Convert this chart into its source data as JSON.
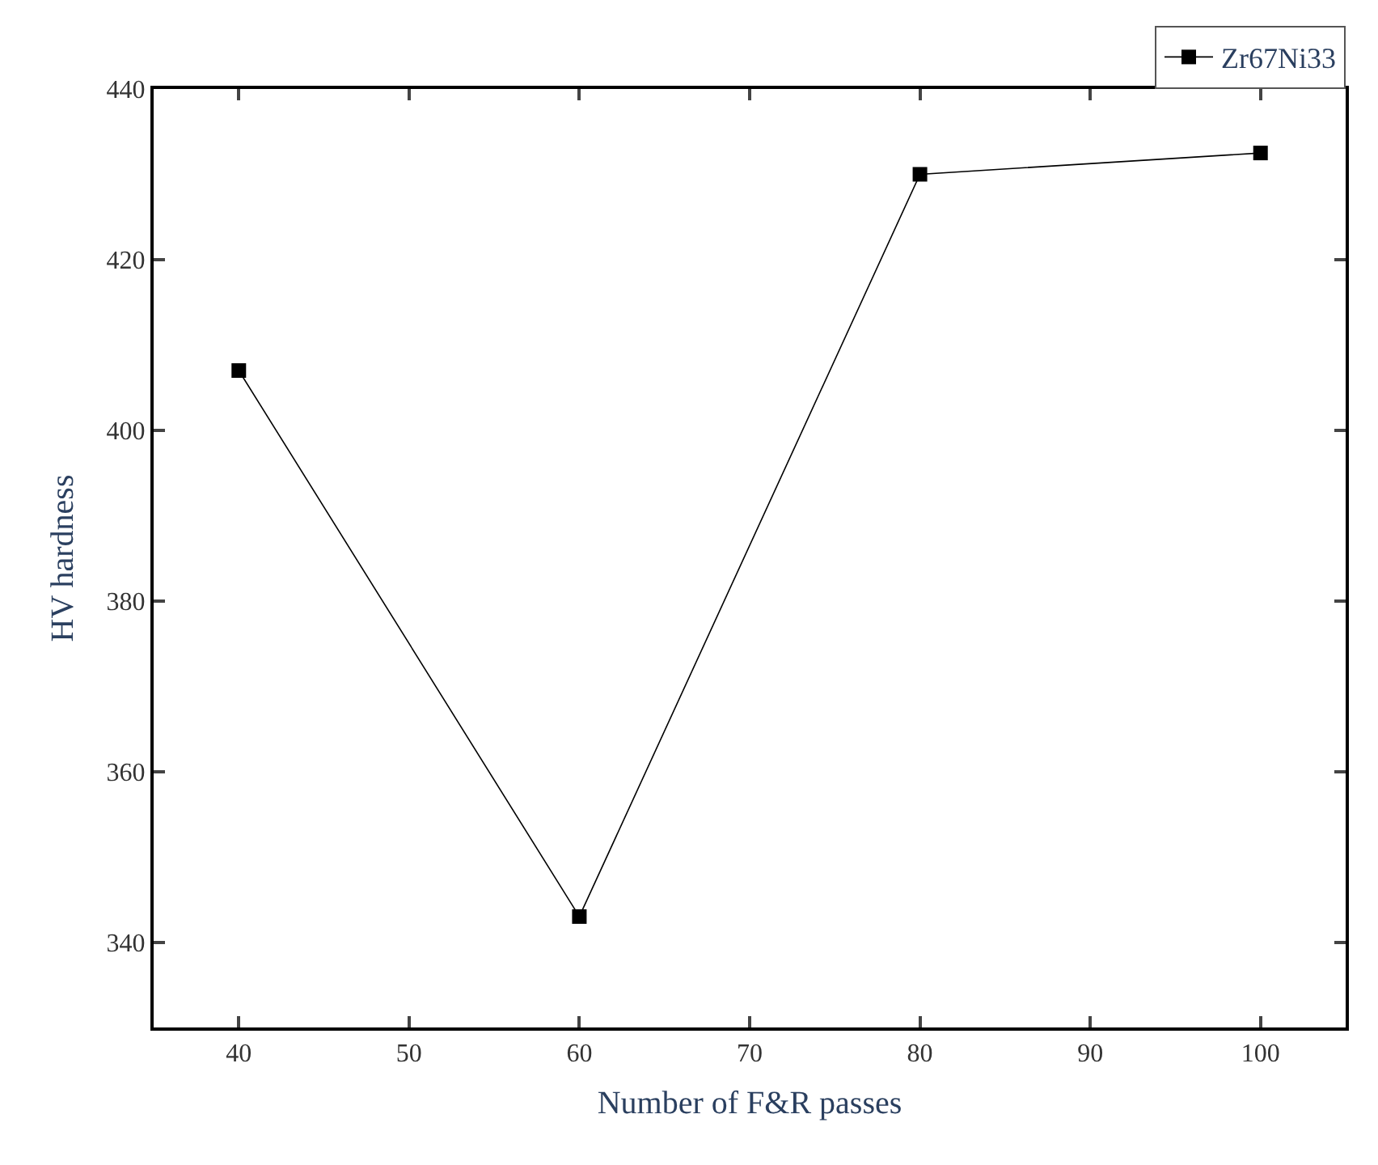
{
  "chart_data": {
    "type": "line",
    "xlabel": "Number of F&R passes",
    "ylabel": "HV hardness",
    "x": [
      40,
      60,
      80,
      100
    ],
    "series": [
      {
        "name": "Zr67Ni33",
        "color": "#000000",
        "values": [
          407,
          343,
          430,
          432.5
        ]
      }
    ],
    "xlim": [
      35,
      105
    ],
    "xticks": [
      40,
      50,
      60,
      70,
      80,
      90,
      100
    ],
    "ylim": [
      330,
      440
    ],
    "yticks": [
      340,
      360,
      380,
      400,
      420,
      440
    ],
    "marker": "square",
    "line_style": "solid",
    "legend": "top right"
  }
}
